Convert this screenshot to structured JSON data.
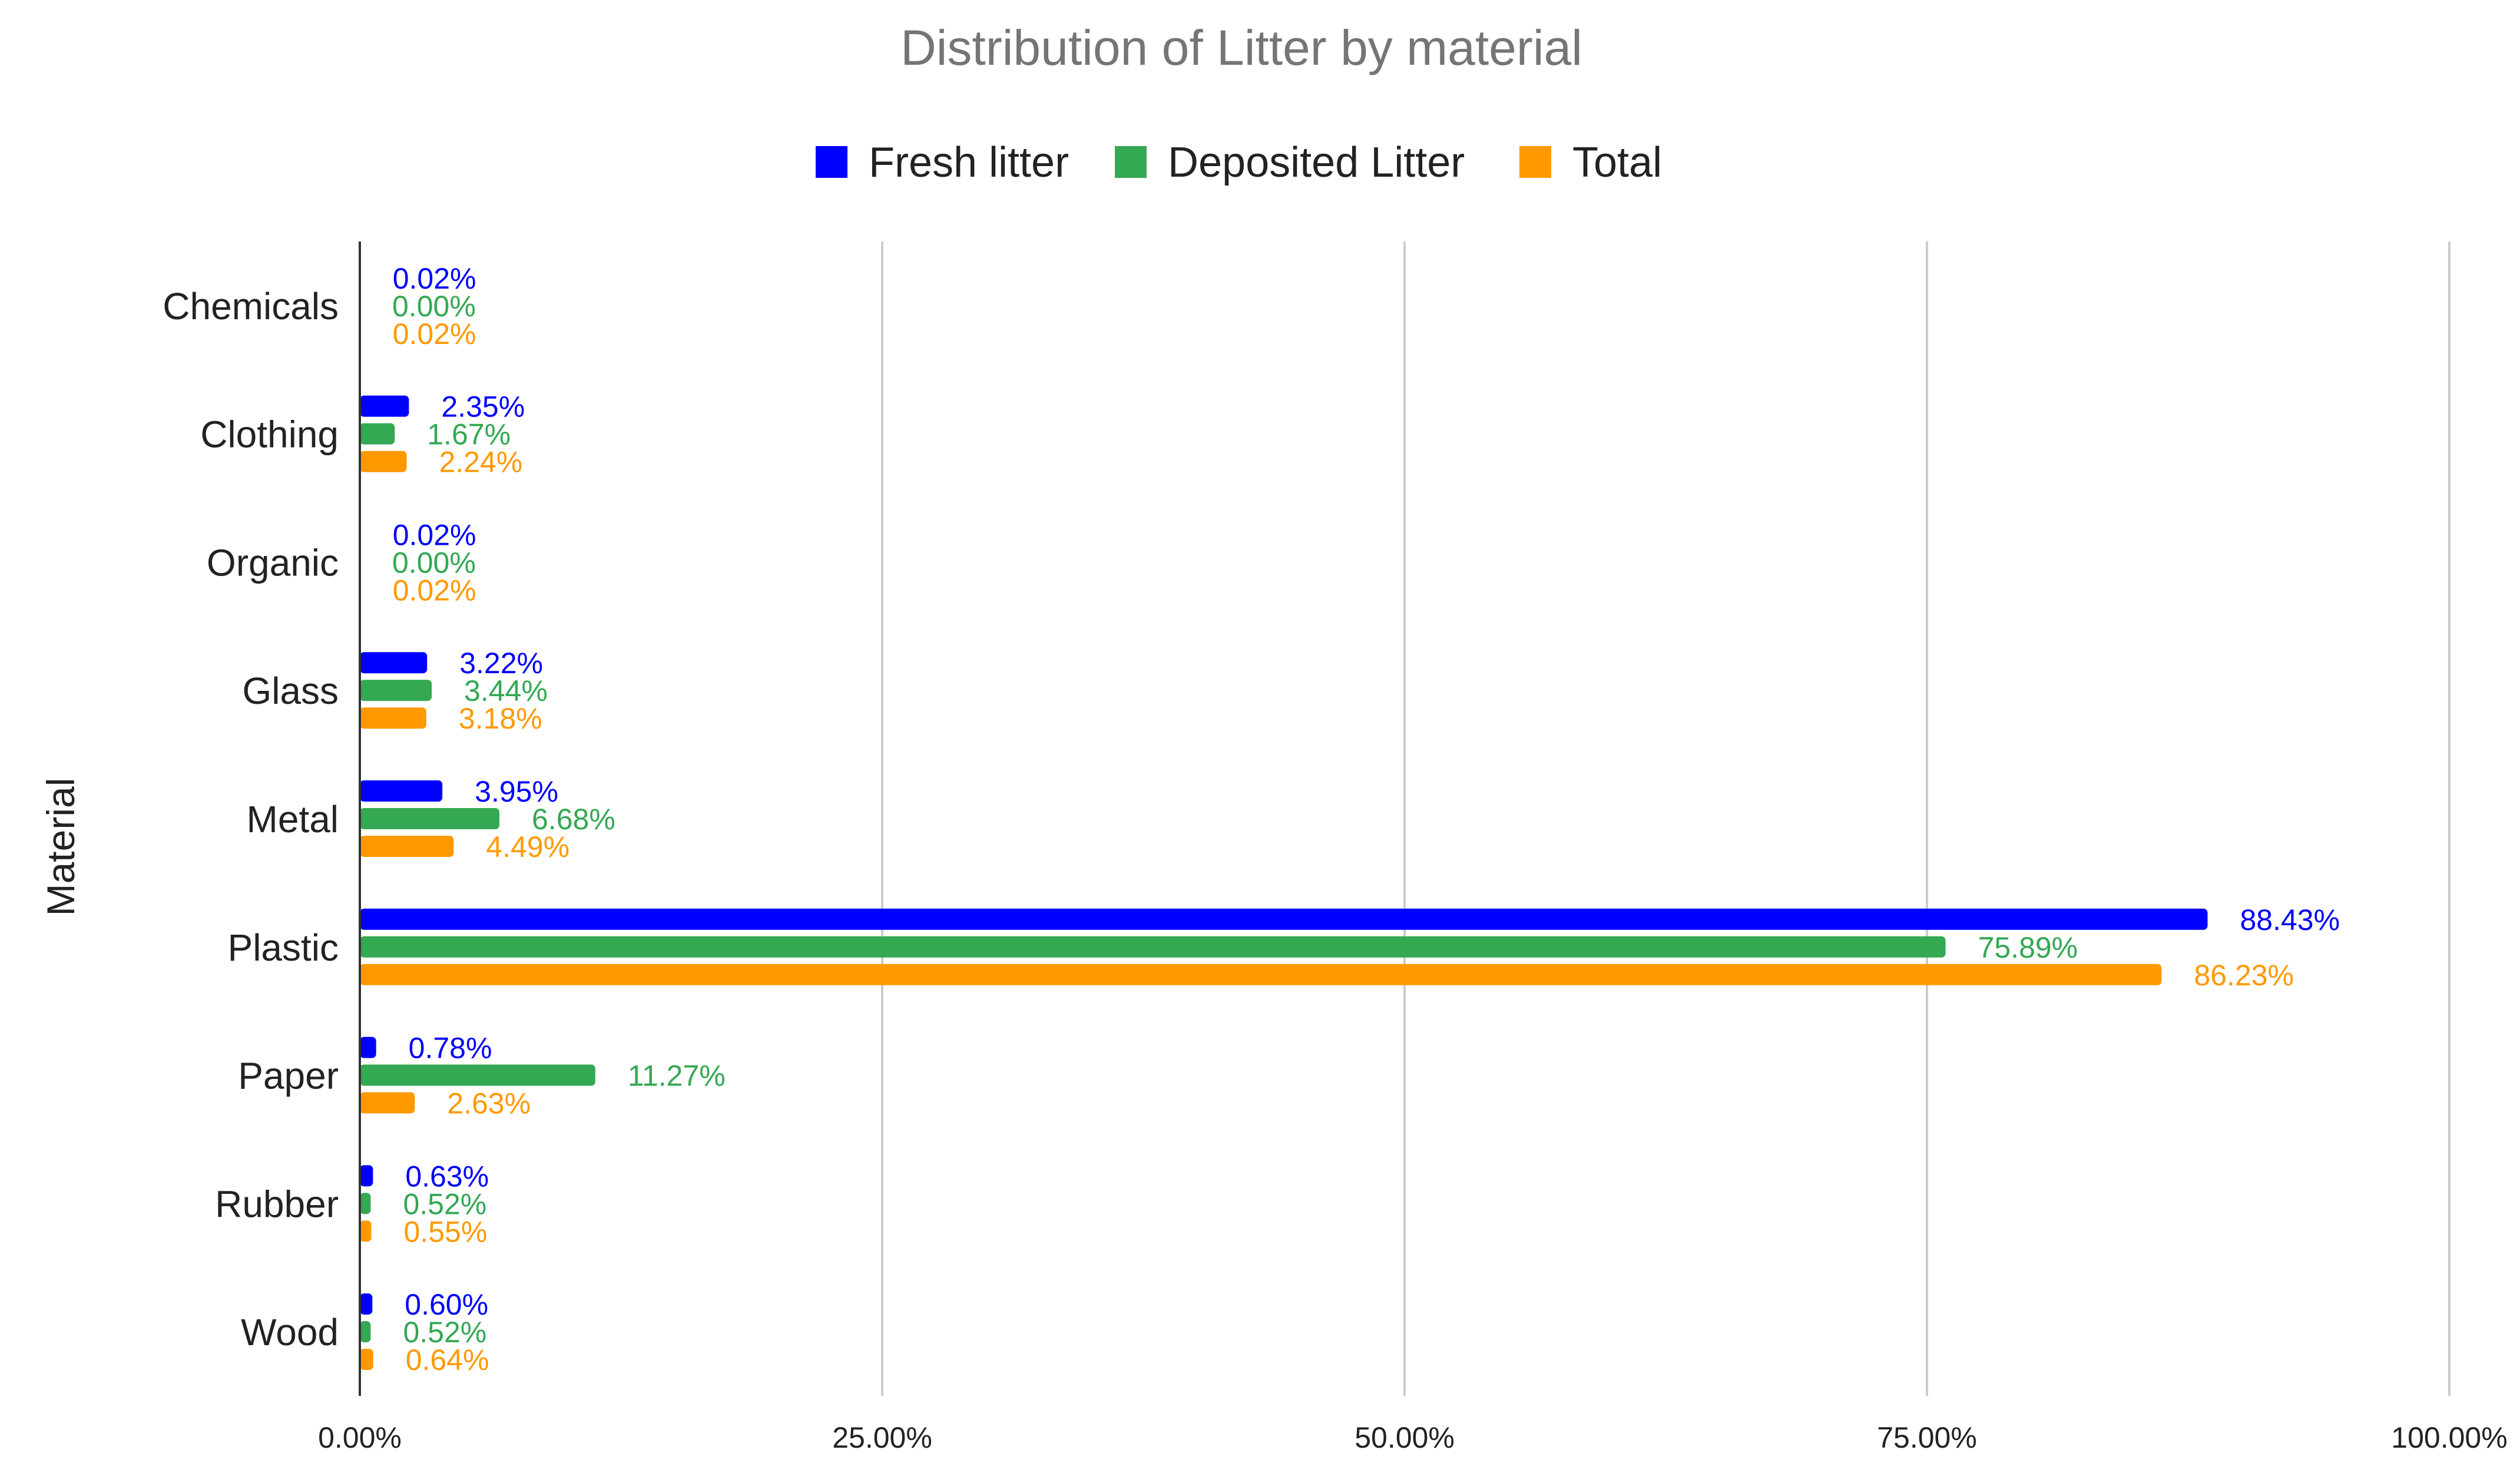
{
  "chart_data": {
    "type": "bar",
    "orientation": "horizontal",
    "title": "Distribution of Litter by material",
    "xlabel": "",
    "ylabel": "Material",
    "xlim": [
      0,
      100
    ],
    "x_ticks": [
      0,
      25,
      50,
      75,
      100
    ],
    "x_tick_labels": [
      "0.00%",
      "25.00%",
      "50.00%",
      "75.00%",
      "100.00%"
    ],
    "grid": true,
    "legend_position": "top-center",
    "categories": [
      "Chemicals",
      "Clothing",
      "Organic",
      "Glass",
      "Metal",
      "Plastic",
      "Paper",
      "Rubber",
      "Wood"
    ],
    "series": [
      {
        "name": "Fresh litter",
        "color": "#0000ff",
        "values": [
          0.02,
          2.35,
          0.02,
          3.22,
          3.95,
          88.43,
          0.78,
          0.63,
          0.6
        ],
        "labels": [
          "0.02%",
          "2.35%",
          "0.02%",
          "3.22%",
          "3.95%",
          "88.43%",
          "0.78%",
          "0.63%",
          "0.60%"
        ]
      },
      {
        "name": "Deposited Litter",
        "color": "#34a853",
        "values": [
          0.0,
          1.67,
          0.0,
          3.44,
          6.68,
          75.89,
          11.27,
          0.52,
          0.52
        ],
        "labels": [
          "0.00%",
          "1.67%",
          "0.00%",
          "3.44%",
          "6.68%",
          "75.89%",
          "11.27%",
          "0.52%",
          "0.52%"
        ]
      },
      {
        "name": "Total",
        "color": "#ff9900",
        "values": [
          0.02,
          2.24,
          0.02,
          3.18,
          4.49,
          86.23,
          2.63,
          0.55,
          0.64
        ],
        "labels": [
          "0.02%",
          "2.24%",
          "0.02%",
          "3.18%",
          "4.49%",
          "86.23%",
          "2.63%",
          "0.55%",
          "0.64%"
        ]
      }
    ]
  }
}
